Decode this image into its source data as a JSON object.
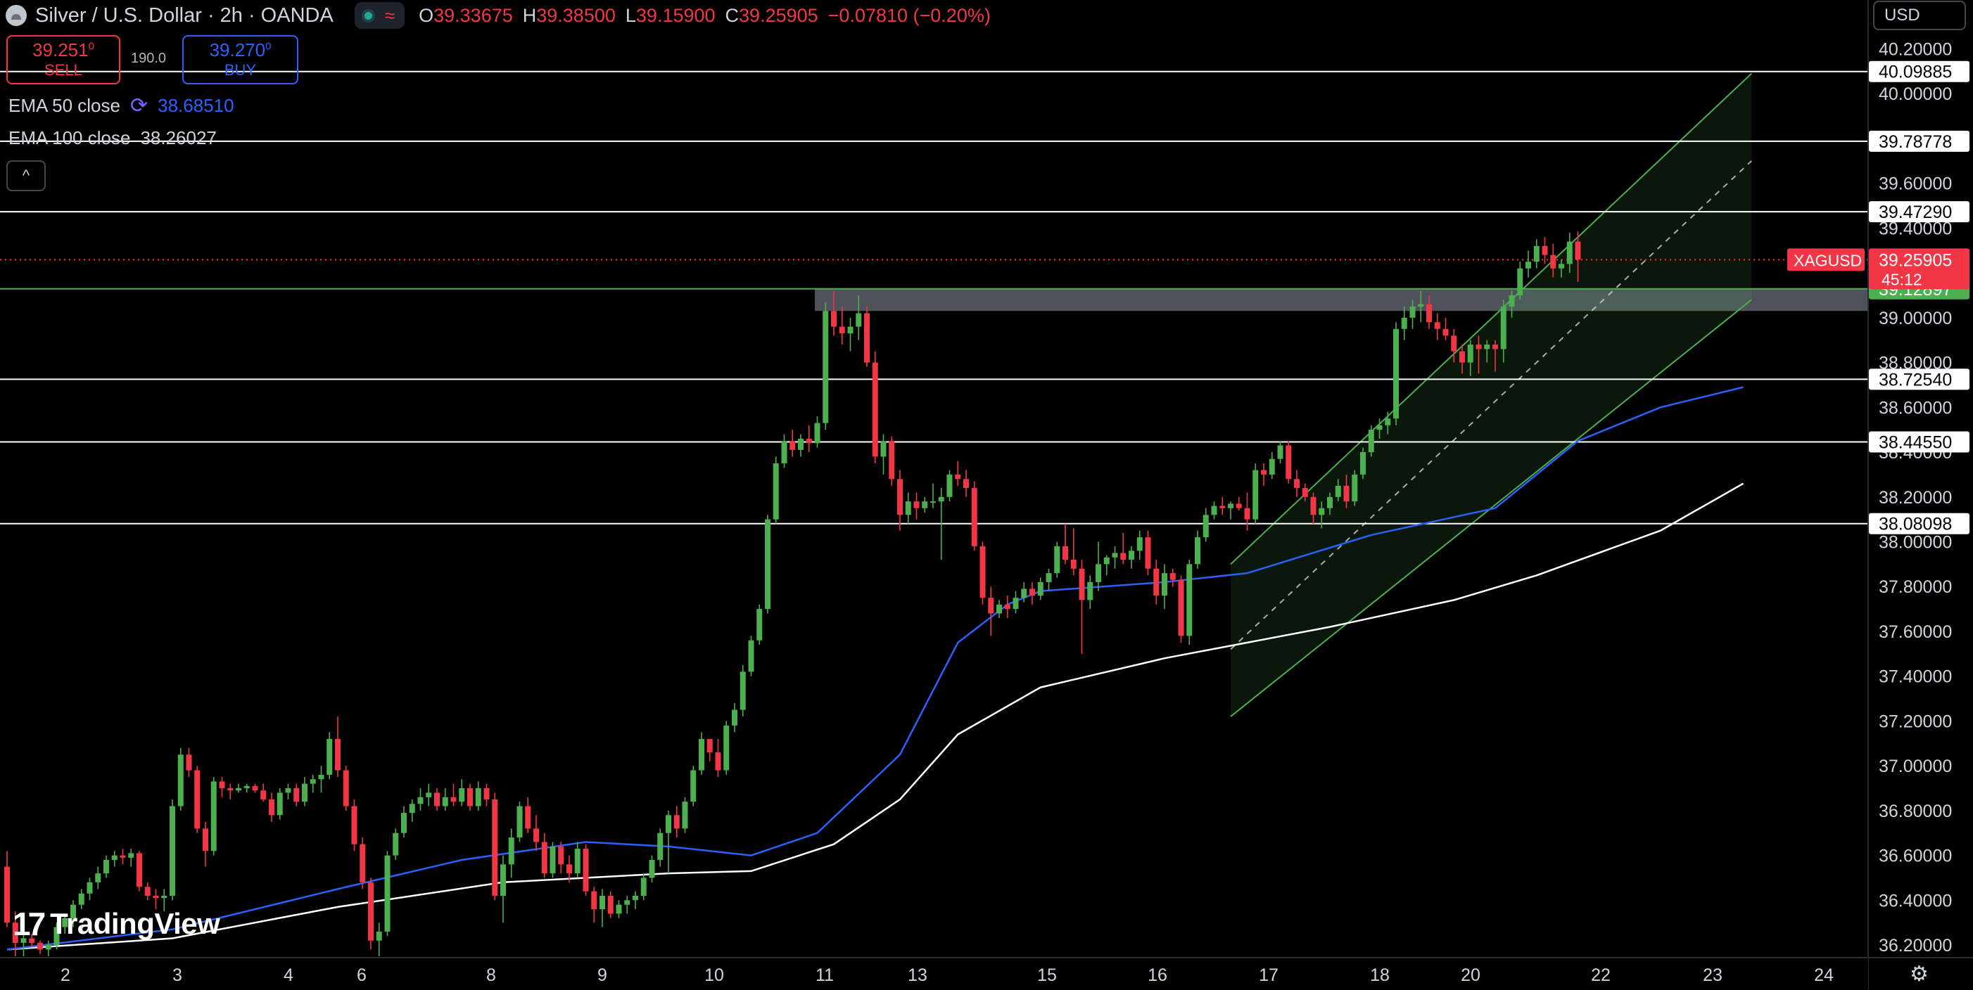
{
  "header": {
    "title": "Silver / U.S. Dollar · 2h · OANDA",
    "wave_glyph": "≈",
    "ohlc": [
      {
        "k": "O",
        "v": "39.33675"
      },
      {
        "k": "H",
        "v": "39.38500"
      },
      {
        "k": "L",
        "v": "39.15900"
      },
      {
        "k": "C",
        "v": "39.25905"
      },
      {
        "k": "",
        "v": "−0.07810 (−0.20%)"
      }
    ]
  },
  "trade": {
    "sell_price": "39.251",
    "sell_sup": "0",
    "sell_label": "SELL",
    "spread": "190.0",
    "buy_price": "39.270",
    "buy_sup": "0",
    "buy_label": "BUY"
  },
  "indicators": {
    "ema50_name": "EMA 50 close",
    "ema50_value": "38.68510",
    "ema100_name": "EMA 100 close",
    "ema100_value": "38.26027"
  },
  "collapse_glyph": "^",
  "currency": "USD",
  "brand": {
    "mark": "17",
    "name": "TradingView"
  },
  "settings_glyph": "⚙",
  "chart_data": {
    "type": "candlestick",
    "symbol": "XAGUSD",
    "y_range": [
      36.15,
      40.28
    ],
    "y_ticks": [
      "40.20000",
      "40.00000",
      "39.80000",
      "39.60000",
      "39.40000",
      "39.20000",
      "39.00000",
      "38.80000",
      "38.60000",
      "38.40000",
      "38.20000",
      "38.00000",
      "37.80000",
      "37.60000",
      "37.40000",
      "37.20000",
      "37.00000",
      "36.80000",
      "36.60000",
      "36.40000",
      "36.20000"
    ],
    "x_labels": [
      "2",
      "3",
      "4",
      "6",
      "8",
      "9",
      "10",
      "11",
      "13",
      "15",
      "16",
      "17",
      "18",
      "20",
      "22",
      "23",
      "24"
    ],
    "horizontal_levels": [
      {
        "label": "40.09885",
        "value": 40.09885
      },
      {
        "label": "39.78778",
        "value": 39.78778
      },
      {
        "label": "39.47290",
        "value": 39.4729
      },
      {
        "label": "38.72540",
        "value": 38.7254
      },
      {
        "label": "38.44550",
        "value": 38.4455
      },
      {
        "label": "38.08098",
        "value": 38.08098
      }
    ],
    "green_level": {
      "label": "39.12897",
      "value": 39.12897
    },
    "last_price": {
      "label": "39.25905",
      "symbol": "XAGUSD",
      "countdown": "45:12"
    },
    "resistance_zone": {
      "from": 39.03,
      "to": 39.12897
    },
    "colors": {
      "up": "#4caf50",
      "down": "#f23645",
      "ema50": "#2962ff",
      "ema100": "#ffffff",
      "channel": "#4caf50"
    },
    "candles": [
      [
        36.55,
        36.62,
        36.28,
        36.3
      ],
      [
        36.3,
        36.35,
        36.15,
        36.21
      ],
      [
        36.21,
        36.26,
        36.15,
        36.23
      ],
      [
        36.23,
        36.25,
        36.19,
        36.21
      ],
      [
        36.21,
        36.22,
        36.16,
        36.18
      ],
      [
        36.18,
        36.22,
        36.15,
        36.2
      ],
      [
        36.2,
        36.3,
        36.18,
        36.28
      ],
      [
        36.28,
        36.34,
        36.25,
        36.32
      ],
      [
        36.32,
        36.4,
        36.28,
        36.38
      ],
      [
        36.38,
        36.45,
        36.36,
        36.43
      ],
      [
        36.43,
        36.5,
        36.4,
        36.48
      ],
      [
        36.48,
        36.55,
        36.45,
        36.52
      ],
      [
        36.52,
        36.6,
        36.5,
        36.58
      ],
      [
        36.58,
        36.62,
        36.55,
        36.6
      ],
      [
        36.6,
        36.63,
        36.56,
        36.59
      ],
      [
        36.59,
        36.63,
        36.55,
        36.61
      ],
      [
        36.61,
        36.62,
        36.44,
        36.46
      ],
      [
        36.46,
        36.48,
        36.4,
        36.42
      ],
      [
        36.42,
        36.45,
        36.36,
        36.41
      ],
      [
        36.41,
        36.45,
        36.35,
        36.42
      ],
      [
        36.42,
        36.85,
        36.4,
        36.82
      ],
      [
        36.82,
        37.08,
        36.8,
        37.05
      ],
      [
        37.05,
        37.08,
        36.95,
        36.98
      ],
      [
        36.98,
        37.0,
        36.7,
        36.72
      ],
      [
        36.72,
        36.75,
        36.55,
        36.62
      ],
      [
        36.62,
        36.95,
        36.6,
        36.93
      ],
      [
        36.93,
        36.95,
        36.86,
        36.9
      ],
      [
        36.9,
        36.92,
        36.85,
        36.89
      ],
      [
        36.89,
        36.92,
        36.88,
        36.9
      ],
      [
        36.9,
        36.92,
        36.88,
        36.91
      ],
      [
        36.91,
        36.92,
        36.88,
        36.89
      ],
      [
        36.89,
        36.92,
        36.84,
        36.85
      ],
      [
        36.85,
        36.88,
        36.75,
        36.78
      ],
      [
        36.78,
        36.9,
        36.76,
        36.88
      ],
      [
        36.88,
        36.92,
        36.85,
        36.9
      ],
      [
        36.9,
        36.92,
        36.82,
        36.84
      ],
      [
        36.84,
        36.95,
        36.82,
        36.92
      ],
      [
        36.92,
        36.96,
        36.88,
        36.94
      ],
      [
        36.94,
        37.0,
        36.88,
        36.96
      ],
      [
        36.96,
        37.15,
        36.94,
        37.12
      ],
      [
        37.12,
        37.22,
        36.95,
        36.98
      ],
      [
        36.98,
        37.0,
        36.8,
        36.82
      ],
      [
        36.82,
        36.85,
        36.62,
        36.65
      ],
      [
        36.65,
        36.68,
        36.45,
        36.48
      ],
      [
        36.48,
        36.5,
        36.18,
        36.22
      ],
      [
        36.22,
        36.3,
        36.15,
        36.26
      ],
      [
        36.26,
        36.62,
        36.24,
        36.6
      ],
      [
        36.6,
        36.72,
        36.58,
        36.7
      ],
      [
        36.7,
        36.82,
        36.68,
        36.79
      ],
      [
        36.79,
        36.85,
        36.75,
        36.83
      ],
      [
        36.83,
        36.9,
        36.8,
        36.86
      ],
      [
        36.86,
        36.92,
        36.82,
        36.88
      ],
      [
        36.88,
        36.9,
        36.8,
        36.82
      ],
      [
        36.82,
        36.9,
        36.8,
        36.86
      ],
      [
        36.86,
        36.92,
        36.82,
        36.84
      ],
      [
        36.84,
        36.94,
        36.82,
        36.9
      ],
      [
        36.9,
        36.92,
        36.8,
        36.82
      ],
      [
        36.82,
        36.93,
        36.8,
        36.9
      ],
      [
        36.9,
        36.92,
        36.82,
        36.85
      ],
      [
        36.85,
        36.88,
        36.4,
        36.42
      ],
      [
        36.42,
        36.6,
        36.3,
        36.56
      ],
      [
        36.56,
        36.72,
        36.5,
        36.68
      ],
      [
        36.68,
        36.84,
        36.66,
        36.82
      ],
      [
        36.82,
        36.86,
        36.7,
        36.72
      ],
      [
        36.72,
        36.78,
        36.62,
        36.66
      ],
      [
        36.66,
        36.7,
        36.5,
        36.52
      ],
      [
        36.52,
        36.66,
        36.5,
        36.64
      ],
      [
        36.64,
        36.66,
        36.52,
        36.56
      ],
      [
        36.56,
        36.6,
        36.48,
        36.52
      ],
      [
        36.52,
        36.66,
        36.5,
        36.63
      ],
      [
        36.63,
        36.65,
        36.42,
        36.44
      ],
      [
        36.44,
        36.46,
        36.3,
        36.36
      ],
      [
        36.36,
        36.45,
        36.28,
        36.42
      ],
      [
        36.42,
        36.44,
        36.32,
        36.34
      ],
      [
        36.34,
        36.4,
        36.32,
        36.38
      ],
      [
        36.38,
        36.42,
        36.34,
        36.4
      ],
      [
        36.4,
        36.44,
        36.36,
        36.42
      ],
      [
        36.42,
        36.52,
        36.4,
        36.5
      ],
      [
        36.5,
        36.6,
        36.48,
        36.58
      ],
      [
        36.58,
        36.72,
        36.55,
        36.7
      ],
      [
        36.7,
        36.8,
        36.52,
        36.78
      ],
      [
        36.78,
        36.82,
        36.68,
        36.72
      ],
      [
        36.72,
        36.86,
        36.7,
        36.84
      ],
      [
        36.84,
        37.0,
        36.82,
        36.98
      ],
      [
        36.98,
        37.15,
        36.96,
        37.12
      ],
      [
        37.12,
        37.1,
        37.02,
        37.06
      ],
      [
        37.06,
        37.12,
        36.95,
        36.98
      ],
      [
        36.98,
        37.2,
        36.96,
        37.18
      ],
      [
        37.18,
        37.28,
        37.15,
        37.25
      ],
      [
        37.25,
        37.45,
        37.22,
        37.42
      ],
      [
        37.42,
        37.58,
        37.4,
        37.56
      ],
      [
        37.56,
        37.72,
        37.54,
        37.7
      ],
      [
        37.7,
        38.12,
        37.68,
        38.1
      ],
      [
        38.1,
        38.38,
        38.08,
        38.35
      ],
      [
        38.35,
        38.48,
        38.33,
        38.45
      ],
      [
        38.45,
        38.5,
        38.38,
        38.41
      ],
      [
        38.41,
        38.48,
        38.38,
        38.46
      ],
      [
        38.46,
        38.52,
        38.4,
        38.44
      ],
      [
        38.44,
        38.56,
        38.42,
        38.53
      ],
      [
        38.53,
        39.07,
        38.5,
        39.03
      ],
      [
        39.03,
        39.12,
        38.92,
        38.96
      ],
      [
        38.96,
        39.05,
        38.88,
        38.93
      ],
      [
        38.93,
        39.0,
        38.85,
        38.96
      ],
      [
        38.96,
        39.1,
        38.9,
        39.02
      ],
      [
        39.02,
        39.05,
        38.78,
        38.8
      ],
      [
        38.8,
        38.85,
        38.35,
        38.38
      ],
      [
        38.38,
        38.48,
        38.3,
        38.45
      ],
      [
        38.45,
        38.47,
        38.25,
        38.28
      ],
      [
        38.28,
        38.32,
        38.05,
        38.12
      ],
      [
        38.12,
        38.22,
        38.08,
        38.18
      ],
      [
        38.18,
        38.22,
        38.1,
        38.15
      ],
      [
        38.15,
        38.2,
        38.13,
        38.18
      ],
      [
        38.18,
        38.26,
        38.15,
        38.18
      ],
      [
        38.18,
        38.24,
        37.92,
        38.2
      ],
      [
        38.2,
        38.32,
        38.18,
        38.3
      ],
      [
        38.3,
        38.36,
        38.25,
        38.28
      ],
      [
        38.28,
        38.32,
        38.2,
        38.24
      ],
      [
        38.24,
        38.27,
        37.96,
        37.98
      ],
      [
        37.98,
        38.0,
        37.72,
        37.75
      ],
      [
        37.75,
        37.8,
        37.58,
        37.68
      ],
      [
        37.68,
        37.74,
        37.66,
        37.72
      ],
      [
        37.72,
        37.76,
        37.66,
        37.7
      ],
      [
        37.7,
        37.78,
        37.68,
        37.75
      ],
      [
        37.75,
        37.82,
        37.73,
        37.79
      ],
      [
        37.79,
        37.82,
        37.72,
        37.76
      ],
      [
        37.76,
        37.84,
        37.74,
        37.82
      ],
      [
        37.82,
        37.88,
        37.78,
        37.86
      ],
      [
        37.86,
        38.0,
        37.84,
        37.98
      ],
      [
        37.98,
        38.08,
        37.9,
        37.92
      ],
      [
        37.92,
        38.06,
        37.85,
        37.88
      ],
      [
        37.88,
        37.92,
        37.5,
        37.74
      ],
      [
        37.74,
        37.85,
        37.7,
        37.82
      ],
      [
        37.82,
        38.0,
        37.78,
        37.9
      ],
      [
        37.9,
        37.94,
        37.85,
        37.93
      ],
      [
        37.93,
        37.98,
        37.88,
        37.95
      ],
      [
        37.95,
        38.04,
        37.9,
        37.92
      ],
      [
        37.92,
        37.98,
        37.88,
        37.96
      ],
      [
        37.96,
        38.05,
        37.92,
        38.02
      ],
      [
        38.02,
        38.05,
        37.85,
        37.88
      ],
      [
        37.88,
        37.92,
        37.72,
        37.76
      ],
      [
        37.76,
        37.9,
        37.7,
        37.86
      ],
      [
        37.86,
        37.88,
        37.8,
        37.83
      ],
      [
        37.83,
        37.85,
        37.55,
        37.58
      ],
      [
        37.58,
        37.92,
        37.54,
        37.9
      ],
      [
        37.9,
        38.05,
        37.88,
        38.02
      ],
      [
        38.02,
        38.15,
        38.0,
        38.12
      ],
      [
        38.12,
        38.18,
        38.1,
        38.16
      ],
      [
        38.16,
        38.2,
        38.12,
        38.15
      ],
      [
        38.15,
        38.18,
        38.1,
        38.17
      ],
      [
        38.17,
        38.2,
        38.14,
        38.15
      ],
      [
        38.15,
        38.22,
        38.05,
        38.1
      ],
      [
        38.1,
        38.35,
        38.08,
        38.32
      ],
      [
        38.32,
        38.35,
        38.25,
        38.3
      ],
      [
        38.3,
        38.4,
        38.28,
        38.37
      ],
      [
        38.37,
        38.45,
        38.35,
        38.43
      ],
      [
        38.43,
        38.45,
        38.26,
        38.28
      ],
      [
        38.28,
        38.32,
        38.2,
        38.24
      ],
      [
        38.24,
        38.26,
        38.18,
        38.2
      ],
      [
        38.2,
        38.22,
        38.08,
        38.12
      ],
      [
        38.12,
        38.18,
        38.06,
        38.15
      ],
      [
        38.15,
        38.22,
        38.12,
        38.2
      ],
      [
        38.2,
        38.28,
        38.18,
        38.25
      ],
      [
        38.25,
        38.3,
        38.15,
        38.18
      ],
      [
        38.18,
        38.32,
        38.16,
        38.3
      ],
      [
        38.3,
        38.42,
        38.28,
        38.4
      ],
      [
        38.4,
        38.52,
        38.38,
        38.5
      ],
      [
        38.5,
        38.55,
        38.46,
        38.52
      ],
      [
        38.52,
        38.58,
        38.48,
        38.55
      ],
      [
        38.55,
        38.98,
        38.52,
        38.95
      ],
      [
        38.95,
        39.05,
        38.9,
        39.0
      ],
      [
        39.0,
        39.08,
        38.95,
        39.05
      ],
      [
        39.05,
        39.12,
        38.98,
        39.06
      ],
      [
        39.06,
        39.1,
        38.95,
        38.98
      ],
      [
        38.98,
        39.02,
        38.9,
        38.95
      ],
      [
        38.95,
        39.0,
        38.9,
        38.92
      ],
      [
        38.92,
        38.95,
        38.8,
        38.85
      ],
      [
        38.85,
        38.88,
        38.75,
        38.8
      ],
      [
        38.8,
        38.9,
        38.74,
        38.88
      ],
      [
        38.88,
        38.92,
        38.75,
        38.86
      ],
      [
        38.86,
        38.9,
        38.8,
        38.88
      ],
      [
        38.88,
        38.9,
        38.76,
        38.86
      ],
      [
        38.86,
        39.08,
        38.8,
        39.05
      ],
      [
        39.05,
        39.12,
        39.0,
        39.1
      ],
      [
        39.1,
        39.25,
        39.08,
        39.22
      ],
      [
        39.22,
        39.3,
        39.18,
        39.25
      ],
      [
        39.25,
        39.35,
        39.22,
        39.32
      ],
      [
        39.32,
        39.36,
        39.24,
        39.28
      ],
      [
        39.28,
        39.33,
        39.18,
        39.22
      ],
      [
        39.22,
        39.26,
        39.18,
        39.24
      ],
      [
        39.24,
        39.38,
        39.2,
        39.34
      ],
      [
        39.34,
        39.385,
        39.159,
        39.25905
      ]
    ],
    "ema50": [
      [
        0,
        36.18
      ],
      [
        20,
        36.27
      ],
      [
        40,
        36.45
      ],
      [
        55,
        36.58
      ],
      [
        70,
        36.66
      ],
      [
        80,
        36.64
      ],
      [
        90,
        36.6
      ],
      [
        98,
        36.7
      ],
      [
        108,
        37.05
      ],
      [
        115,
        37.55
      ],
      [
        121,
        37.72
      ],
      [
        125,
        37.78
      ],
      [
        140,
        37.82
      ],
      [
        150,
        37.86
      ],
      [
        165,
        38.03
      ],
      [
        180,
        38.15
      ],
      [
        190,
        38.45
      ],
      [
        200,
        38.6
      ],
      [
        210,
        38.69
      ]
    ],
    "ema100": [
      [
        0,
        36.18
      ],
      [
        20,
        36.23
      ],
      [
        40,
        36.37
      ],
      [
        60,
        36.48
      ],
      [
        80,
        36.52
      ],
      [
        90,
        36.53
      ],
      [
        100,
        36.65
      ],
      [
        108,
        36.85
      ],
      [
        115,
        37.14
      ],
      [
        125,
        37.35
      ],
      [
        140,
        37.48
      ],
      [
        160,
        37.62
      ],
      [
        175,
        37.74
      ],
      [
        185,
        37.85
      ],
      [
        200,
        38.05
      ],
      [
        210,
        38.26
      ]
    ],
    "channel": {
      "lower": [
        [
          148,
          37.22
        ],
        [
          211,
          39.08
        ]
      ],
      "mid": [
        [
          148,
          37.52
        ],
        [
          211,
          39.7
        ]
      ],
      "upper": [
        [
          148,
          37.9
        ],
        [
          211,
          40.09
        ]
      ]
    }
  }
}
